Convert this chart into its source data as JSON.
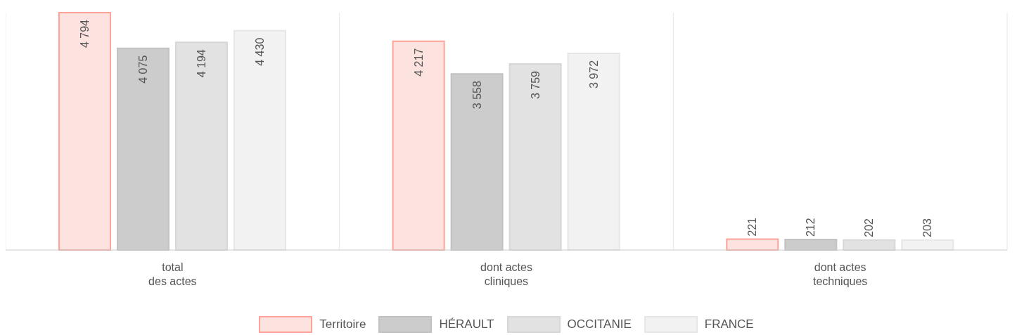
{
  "chart_data": {
    "type": "bar",
    "categories": [
      "total\ndes actes",
      "dont actes\ncliniques",
      "dont actes\ntechniques"
    ],
    "series": [
      {
        "name": "Territoire",
        "color": "#fde3e0",
        "values": [
          4794,
          4217,
          221
        ],
        "value_labels": [
          "4 794",
          "4 217",
          "221"
        ]
      },
      {
        "name": "HÉRAULT",
        "color": "#cccccc",
        "values": [
          4075,
          3558,
          212
        ],
        "value_labels": [
          "4 075",
          "3 558",
          "212"
        ]
      },
      {
        "name": "OCCITANIE",
        "color": "#e2e2e2",
        "values": [
          4194,
          3759,
          202
        ],
        "value_labels": [
          "4 194",
          "3 759",
          "202"
        ]
      },
      {
        "name": "FRANCE",
        "color": "#f2f2f2",
        "values": [
          4430,
          3972,
          203
        ],
        "value_labels": [
          "4 430",
          "3 972",
          "203"
        ]
      }
    ],
    "grid": "x",
    "legend": "bottom",
    "tick_labels": "x"
  }
}
